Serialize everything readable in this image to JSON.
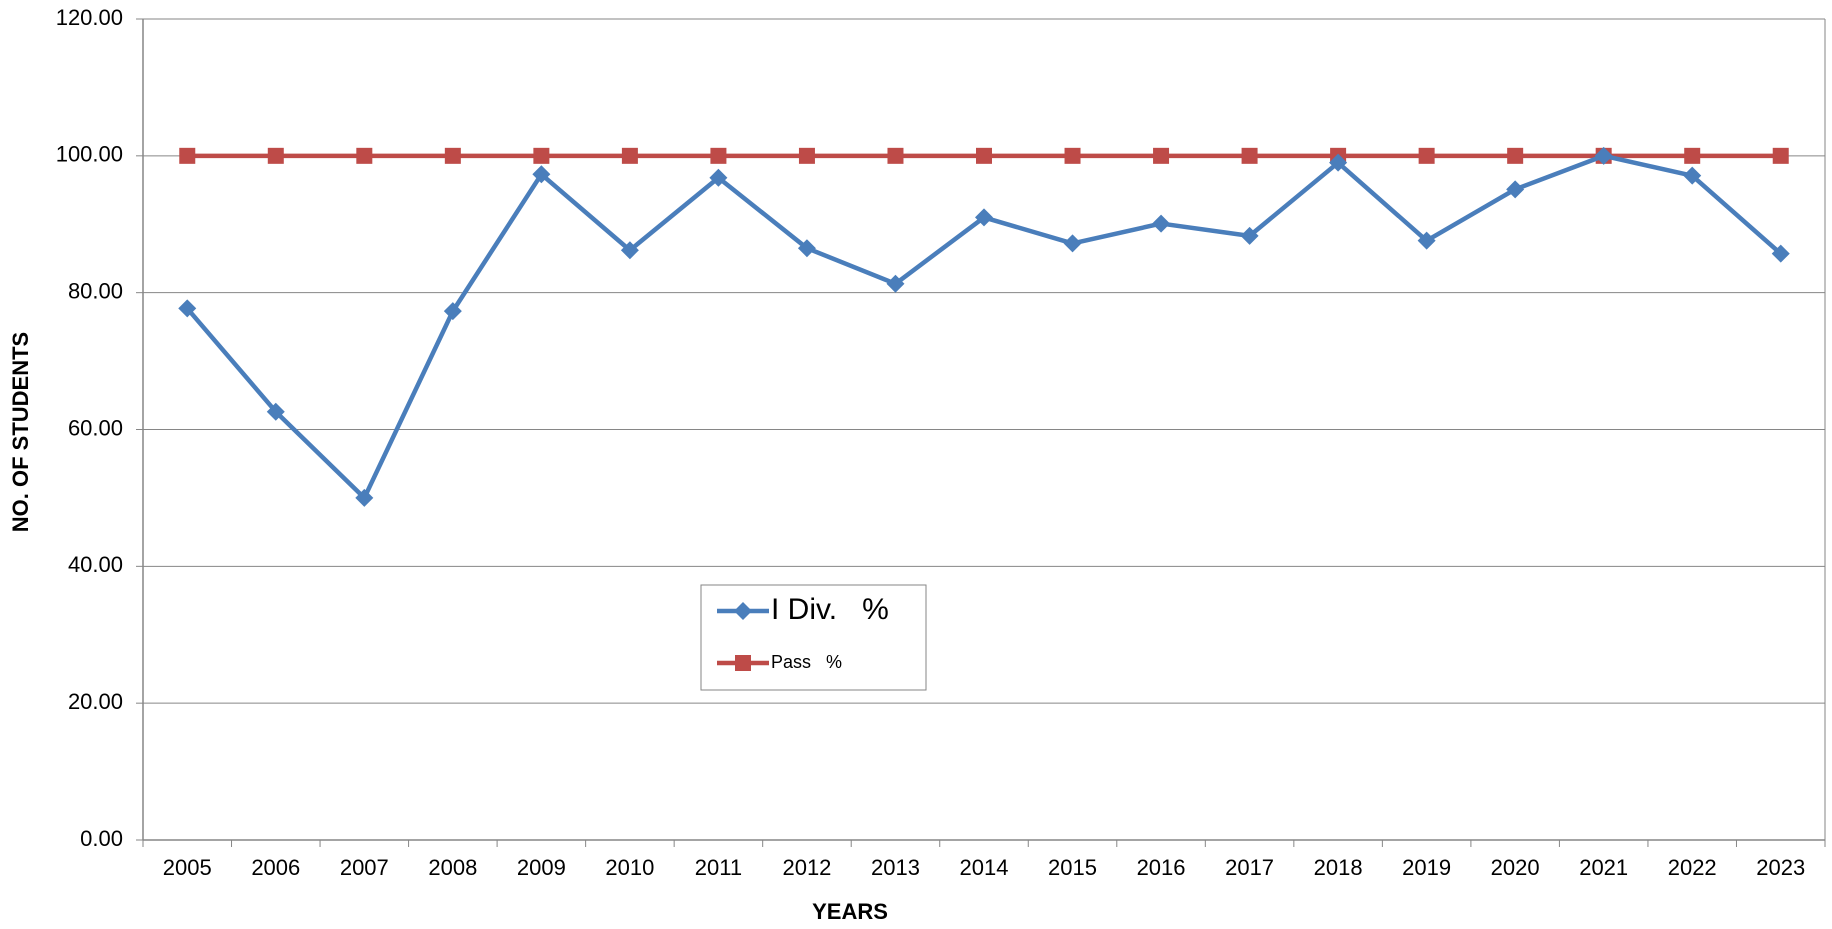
{
  "chart_data": {
    "type": "line",
    "x_label": "YEARS",
    "y_label": "NO. OF STUDENTS",
    "categories": [
      "2005",
      "2006",
      "2007",
      "2008",
      "2009",
      "2010",
      "2011",
      "2012",
      "2013",
      "2014",
      "2015",
      "2016",
      "2017",
      "2018",
      "2019",
      "2020",
      "2021",
      "2022",
      "2023"
    ],
    "series": [
      {
        "name": "I Div.   %",
        "color": "#4a7ebb",
        "marker": "diamond",
        "values": [
          77.7,
          62.6,
          50.0,
          77.3,
          97.3,
          86.2,
          96.8,
          86.5,
          81.3,
          91.0,
          87.2,
          90.1,
          88.3,
          99.0,
          87.6,
          95.1,
          100.0,
          97.1,
          85.7
        ]
      },
      {
        "name": "Pass   %",
        "color": "#be4b48",
        "marker": "square",
        "values": [
          100,
          100,
          100,
          100,
          100,
          100,
          100,
          100,
          100,
          100,
          100,
          100,
          100,
          100,
          100,
          100,
          100,
          100,
          100
        ]
      }
    ],
    "ylim": [
      0,
      120
    ],
    "yticks": [
      {
        "value": 0,
        "label": "0.00"
      },
      {
        "value": 20,
        "label": "20.00"
      },
      {
        "value": 40,
        "label": "40.00"
      },
      {
        "value": 60,
        "label": "60.00"
      },
      {
        "value": 80,
        "label": "80.00"
      },
      {
        "value": 100,
        "label": "100.00"
      },
      {
        "value": 120,
        "label": "120.00"
      }
    ],
    "grid": true
  }
}
